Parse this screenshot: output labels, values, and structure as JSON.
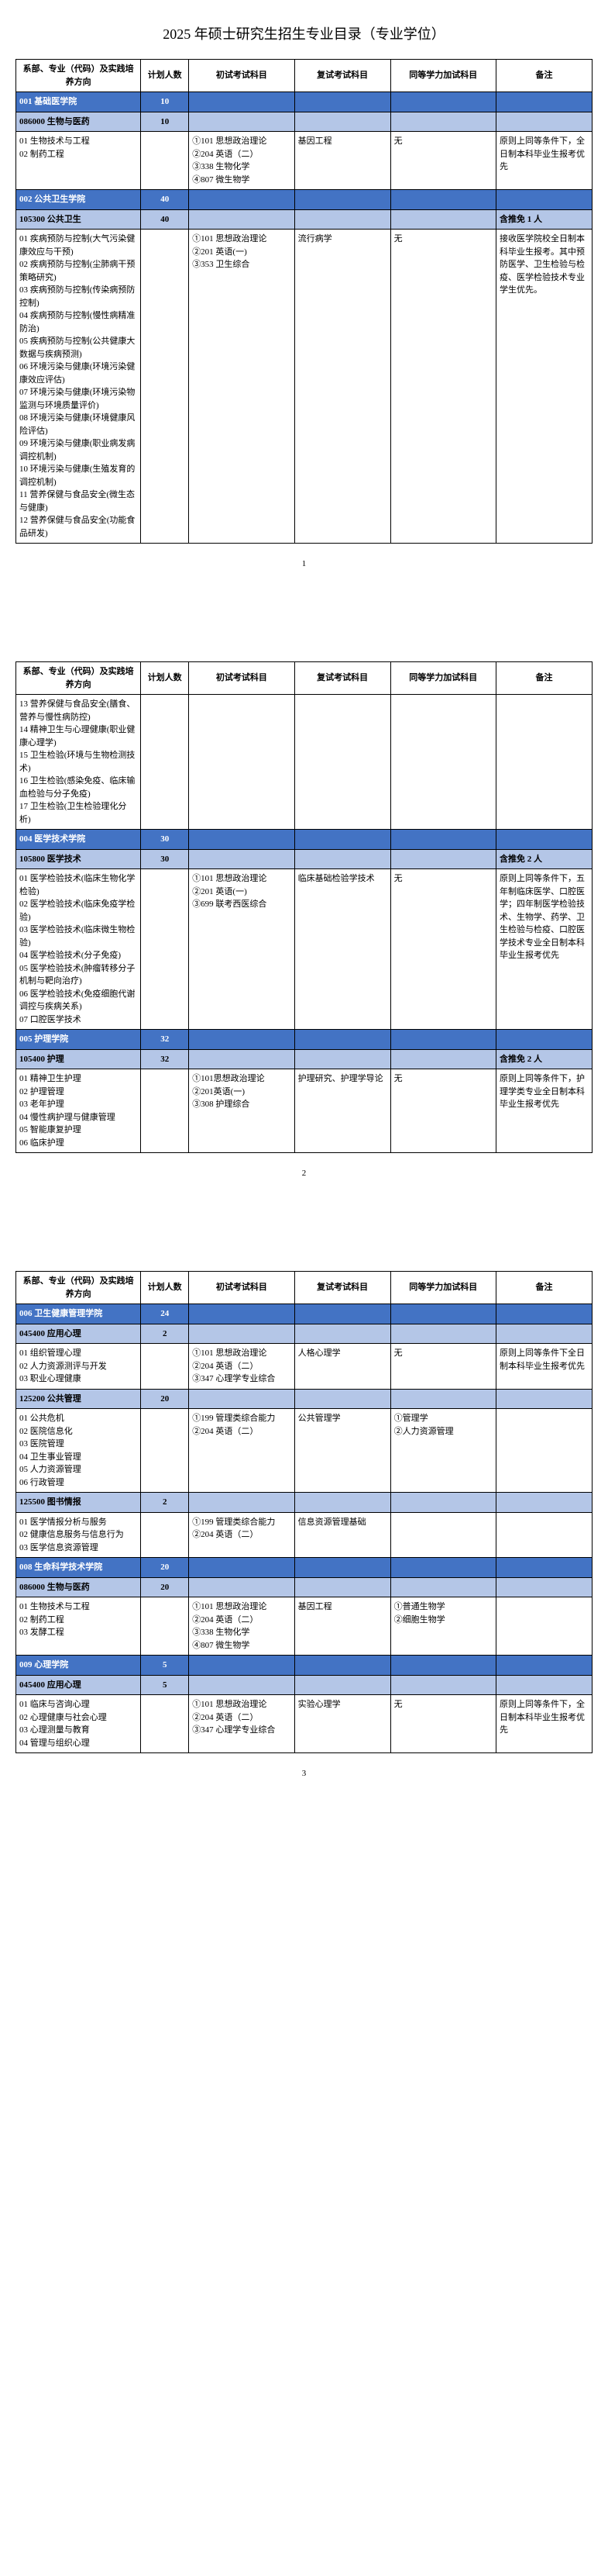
{
  "title": "2025 年硕士研究生招生专业目录（专业学位）",
  "headers": {
    "dept": "系部、专业（代码）及实践培养方向",
    "num": "计划人数",
    "exam1": "初试考试科目",
    "exam2": "复试考试科目",
    "extra": "同等学力加试科目",
    "note": "备注"
  },
  "page_numbers": [
    "1",
    "2",
    "3"
  ],
  "sections": [
    {
      "type": "dark",
      "cells": [
        "001 基础医学院",
        "10",
        "",
        "",
        "",
        ""
      ]
    },
    {
      "type": "light",
      "cells": [
        "086000 生物与医药",
        "10",
        "",
        "",
        "",
        ""
      ]
    },
    {
      "type": "row",
      "cells": [
        "01 生物技术与工程\n02 制药工程",
        "",
        "①101 思想政治理论\n②204 英语（二）\n③338 生物化学\n④807 微生物学",
        "基因工程",
        "无",
        "原则上同等条件下，全日制本科毕业生报考优先"
      ]
    },
    {
      "type": "dark",
      "cells": [
        "002 公共卫生学院",
        "40",
        "",
        "",
        "",
        ""
      ]
    },
    {
      "type": "light",
      "cells": [
        "105300 公共卫生",
        "40",
        "",
        "",
        "",
        "含推免 1 人"
      ]
    },
    {
      "type": "row",
      "cells": [
        "01 疾病预防与控制(大气污染健康效应与干预)\n02 疾病预防与控制(尘肺病干预策略研究)\n03 疾病预防与控制(传染病预防控制)\n04 疾病预防与控制(慢性病精准防治)\n05 疾病预防与控制(公共健康大数据与疾病预测)\n06 环境污染与健康(环境污染健康效应评估)\n07 环境污染与健康(环境污染物监测与环境质量评价)\n08 环境污染与健康(环境健康风险评估)\n09 环境污染与健康(职业病发病调控机制)\n10 环境污染与健康(生殖发育的调控机制)\n11 营养保健与食品安全(微生态与健康)\n12 营养保健与食品安全(功能食品研发)",
        "",
        "①101 思想政治理论\n②201 英语(一)\n③353 卫生综合",
        "流行病学",
        "无",
        "接收医学院校全日制本科毕业生报考。其中预防医学、卫生检验与检疫、医学检验技术专业学生优先。"
      ]
    }
  ],
  "sections_p2": [
    {
      "type": "row",
      "cells": [
        "13 营养保健与食品安全(膳食、营养与慢性病防控)\n14 精神卫生与心理健康(职业健康心理学)\n15 卫生检验(环境与生物检测技术)\n16 卫生检验(感染免疫、临床输血检验与分子免疫)\n17 卫生检验(卫生检验理化分析)",
        "",
        "",
        "",
        "",
        ""
      ]
    },
    {
      "type": "dark",
      "cells": [
        "004 医学技术学院",
        "30",
        "",
        "",
        "",
        ""
      ]
    },
    {
      "type": "light",
      "cells": [
        "105800 医学技术",
        "30",
        "",
        "",
        "",
        "含推免 2 人"
      ]
    },
    {
      "type": "row",
      "cells": [
        "01 医学检验技术(临床生物化学检验)\n02 医学检验技术(临床免疫学检验)\n03 医学检验技术(临床微生物检验)\n04 医学检验技术(分子免疫)\n05 医学检验技术(肿瘤转移分子机制与靶向治疗)\n06 医学检验技术(免疫细胞代谢调控与疾病关系)\n07 口腔医学技术",
        "",
        "①101 思想政治理论\n②201 英语(一)\n③699 联考西医综合",
        "临床基础检验学技术",
        "无",
        "原则上同等条件下，五年制临床医学、口腔医学；四年制医学检验技术、生物学、药学、卫生检验与检疫、口腔医学技术专业全日制本科毕业生报考优先"
      ]
    },
    {
      "type": "dark",
      "cells": [
        "005 护理学院",
        "32",
        "",
        "",
        "",
        ""
      ]
    },
    {
      "type": "light",
      "cells": [
        "105400 护理",
        "32",
        "",
        "",
        "",
        "含推免 2 人"
      ]
    },
    {
      "type": "row",
      "cells": [
        "01 精神卫生护理\n02 护理管理\n03 老年护理\n04 慢性病护理与健康管理\n05 智能康复护理\n06 临床护理",
        "",
        "①101思想政治理论\n②201英语(一)\n③308 护理综合",
        "护理研究、护理学导论",
        "无",
        "原则上同等条件下，护理学类专业全日制本科毕业生报考优先"
      ]
    }
  ],
  "sections_p3": [
    {
      "type": "dark",
      "cells": [
        "006 卫生健康管理学院",
        "24",
        "",
        "",
        "",
        ""
      ]
    },
    {
      "type": "light",
      "cells": [
        "045400 应用心理",
        "2",
        "",
        "",
        "",
        ""
      ]
    },
    {
      "type": "row",
      "cells": [
        "01 组织管理心理\n02 人力资源测评与开发\n03 职业心理健康",
        "",
        "①101 思想政治理论\n②204 英语（二）\n③347 心理学专业综合",
        "人格心理学",
        "无",
        "原则上同等条件下全日制本科毕业生报考优先"
      ]
    },
    {
      "type": "light",
      "cells": [
        "125200 公共管理",
        "20",
        "",
        "",
        "",
        ""
      ]
    },
    {
      "type": "row",
      "cells": [
        "01 公共危机\n02 医院信息化\n03 医院管理\n04 卫生事业管理\n05 人力资源管理\n06 行政管理",
        "",
        "①199 管理类综合能力\n②204 英语（二）",
        "公共管理学",
        "①管理学\n②人力资源管理",
        ""
      ]
    },
    {
      "type": "light",
      "cells": [
        "125500 图书情报",
        "2",
        "",
        "",
        "",
        ""
      ]
    },
    {
      "type": "row",
      "cells": [
        "01 医学情报分析与服务\n02 健康信息服务与信息行为\n03 医学信息资源管理",
        "",
        "①199 管理类综合能力\n②204 英语（二）",
        "信息资源管理基础",
        "",
        ""
      ]
    },
    {
      "type": "dark",
      "cells": [
        "008 生命科学技术学院",
        "20",
        "",
        "",
        "",
        ""
      ]
    },
    {
      "type": "light",
      "cells": [
        "086000 生物与医药",
        "20",
        "",
        "",
        "",
        ""
      ]
    },
    {
      "type": "row",
      "cells": [
        "01 生物技术与工程\n02 制药工程\n03 发酵工程",
        "",
        "①101 思想政治理论\n②204 英语（二）\n③338 生物化学\n④807 微生物学",
        "基因工程",
        "①普通生物学\n②细胞生物学",
        ""
      ]
    },
    {
      "type": "dark",
      "cells": [
        "009 心理学院",
        "5",
        "",
        "",
        "",
        ""
      ]
    },
    {
      "type": "light",
      "cells": [
        "045400 应用心理",
        "5",
        "",
        "",
        "",
        ""
      ]
    },
    {
      "type": "row",
      "cells": [
        "01 临床与咨询心理\n02 心理健康与社会心理\n03 心理测量与教育\n04 管理与组织心理",
        "",
        "①101 思想政治理论\n②204 英语（二）\n③347 心理学专业综合",
        "实验心理学",
        "无",
        "原则上同等条件下，全日制本科毕业生报考优先"
      ]
    }
  ]
}
